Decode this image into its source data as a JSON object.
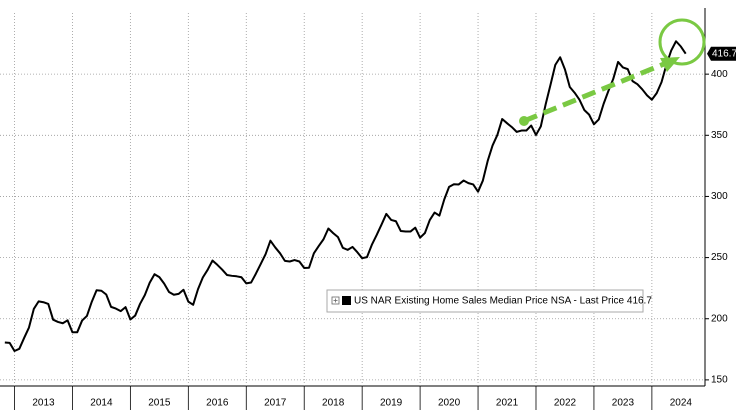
{
  "chart_data": {
    "type": "line",
    "x": [
      "2012-11",
      "2012-12",
      "2013-01",
      "2013-02",
      "2013-03",
      "2013-04",
      "2013-05",
      "2013-06",
      "2013-07",
      "2013-08",
      "2013-09",
      "2013-10",
      "2013-11",
      "2013-12",
      "2014-01",
      "2014-02",
      "2014-03",
      "2014-04",
      "2014-05",
      "2014-06",
      "2014-07",
      "2014-08",
      "2014-09",
      "2014-10",
      "2014-11",
      "2014-12",
      "2015-01",
      "2015-02",
      "2015-03",
      "2015-04",
      "2015-05",
      "2015-06",
      "2015-07",
      "2015-08",
      "2015-09",
      "2015-10",
      "2015-11",
      "2015-12",
      "2016-01",
      "2016-02",
      "2016-03",
      "2016-04",
      "2016-05",
      "2016-06",
      "2016-07",
      "2016-08",
      "2016-09",
      "2016-10",
      "2016-11",
      "2016-12",
      "2017-01",
      "2017-02",
      "2017-03",
      "2017-04",
      "2017-05",
      "2017-06",
      "2017-07",
      "2017-08",
      "2017-09",
      "2017-10",
      "2017-11",
      "2017-12",
      "2018-01",
      "2018-02",
      "2018-03",
      "2018-04",
      "2018-05",
      "2018-06",
      "2018-07",
      "2018-08",
      "2018-09",
      "2018-10",
      "2018-11",
      "2018-12",
      "2019-01",
      "2019-02",
      "2019-03",
      "2019-04",
      "2019-05",
      "2019-06",
      "2019-07",
      "2019-08",
      "2019-09",
      "2019-10",
      "2019-11",
      "2019-12",
      "2020-01",
      "2020-02",
      "2020-03",
      "2020-04",
      "2020-05",
      "2020-06",
      "2020-07",
      "2020-08",
      "2020-09",
      "2020-10",
      "2020-11",
      "2020-12",
      "2021-01",
      "2021-02",
      "2021-03",
      "2021-04",
      "2021-05",
      "2021-06",
      "2021-07",
      "2021-08",
      "2021-09",
      "2021-10",
      "2021-11",
      "2021-12",
      "2022-01",
      "2022-02",
      "2022-03",
      "2022-04",
      "2022-05",
      "2022-06",
      "2022-07",
      "2022-08",
      "2022-09",
      "2022-10",
      "2022-11",
      "2022-12",
      "2023-01",
      "2023-02",
      "2023-03",
      "2023-04",
      "2023-05",
      "2023-06",
      "2023-07",
      "2023-08",
      "2023-09",
      "2023-10",
      "2023-11",
      "2023-12",
      "2024-01",
      "2024-02",
      "2024-03",
      "2024-04",
      "2024-05",
      "2024-06",
      "2024-07",
      "2024-08"
    ],
    "series": [
      {
        "name": "US NAR Existing Home Sales Median Price NSA - Last Price 416.7",
        "color": "#000000",
        "values": [
          180.6,
          180.3,
          173.6,
          175.4,
          184.3,
          192.8,
          208.0,
          214.2,
          213.5,
          212.1,
          199.2,
          197.4,
          196.3,
          198.7,
          188.9,
          189.0,
          198.5,
          202.3,
          213.8,
          223.3,
          222.9,
          219.8,
          209.7,
          208.3,
          206.2,
          209.5,
          199.4,
          202.6,
          212.1,
          219.4,
          229.4,
          236.4,
          234.0,
          228.7,
          221.9,
          219.6,
          220.3,
          223.7,
          214.0,
          211.4,
          224.1,
          233.7,
          240.0,
          247.6,
          244.1,
          240.2,
          235.8,
          235.1,
          234.7,
          233.9,
          228.9,
          229.6,
          236.9,
          244.8,
          252.8,
          263.8,
          258.3,
          253.5,
          247.3,
          246.8,
          248.0,
          246.8,
          241.5,
          241.7,
          253.5,
          259.4,
          265.0,
          273.8,
          270.0,
          266.7,
          258.0,
          256.3,
          258.7,
          254.4,
          249.5,
          250.4,
          260.4,
          268.4,
          276.9,
          285.7,
          280.8,
          279.7,
          271.7,
          271.3,
          271.3,
          274.5,
          266.3,
          270.1,
          280.7,
          286.8,
          284.3,
          297.5,
          307.8,
          310.0,
          309.8,
          313.0,
          310.9,
          309.8,
          303.9,
          313.0,
          329.1,
          341.6,
          350.3,
          363.3,
          359.9,
          356.7,
          352.8,
          353.9,
          353.9,
          358.0,
          350.3,
          357.3,
          375.3,
          391.2,
          407.6,
          413.8,
          403.8,
          389.5,
          384.8,
          379.1,
          370.7,
          366.9,
          359.0,
          363.0,
          375.7,
          386.3,
          396.1,
          410.0,
          405.5,
          404.1,
          394.3,
          391.8,
          387.6,
          382.6,
          379.1,
          384.5,
          393.5,
          407.6,
          419.3,
          426.9,
          422.6,
          416.7
        ]
      }
    ],
    "xlim": [
      "2012-10",
      "2024-12"
    ],
    "xticks": [
      2013,
      2014,
      2015,
      2016,
      2017,
      2018,
      2019,
      2020,
      2021,
      2022,
      2023,
      2024
    ],
    "ylim": [
      145,
      450
    ],
    "yticks": [
      150,
      200,
      250,
      300,
      350,
      400
    ],
    "grid": true
  }
}
